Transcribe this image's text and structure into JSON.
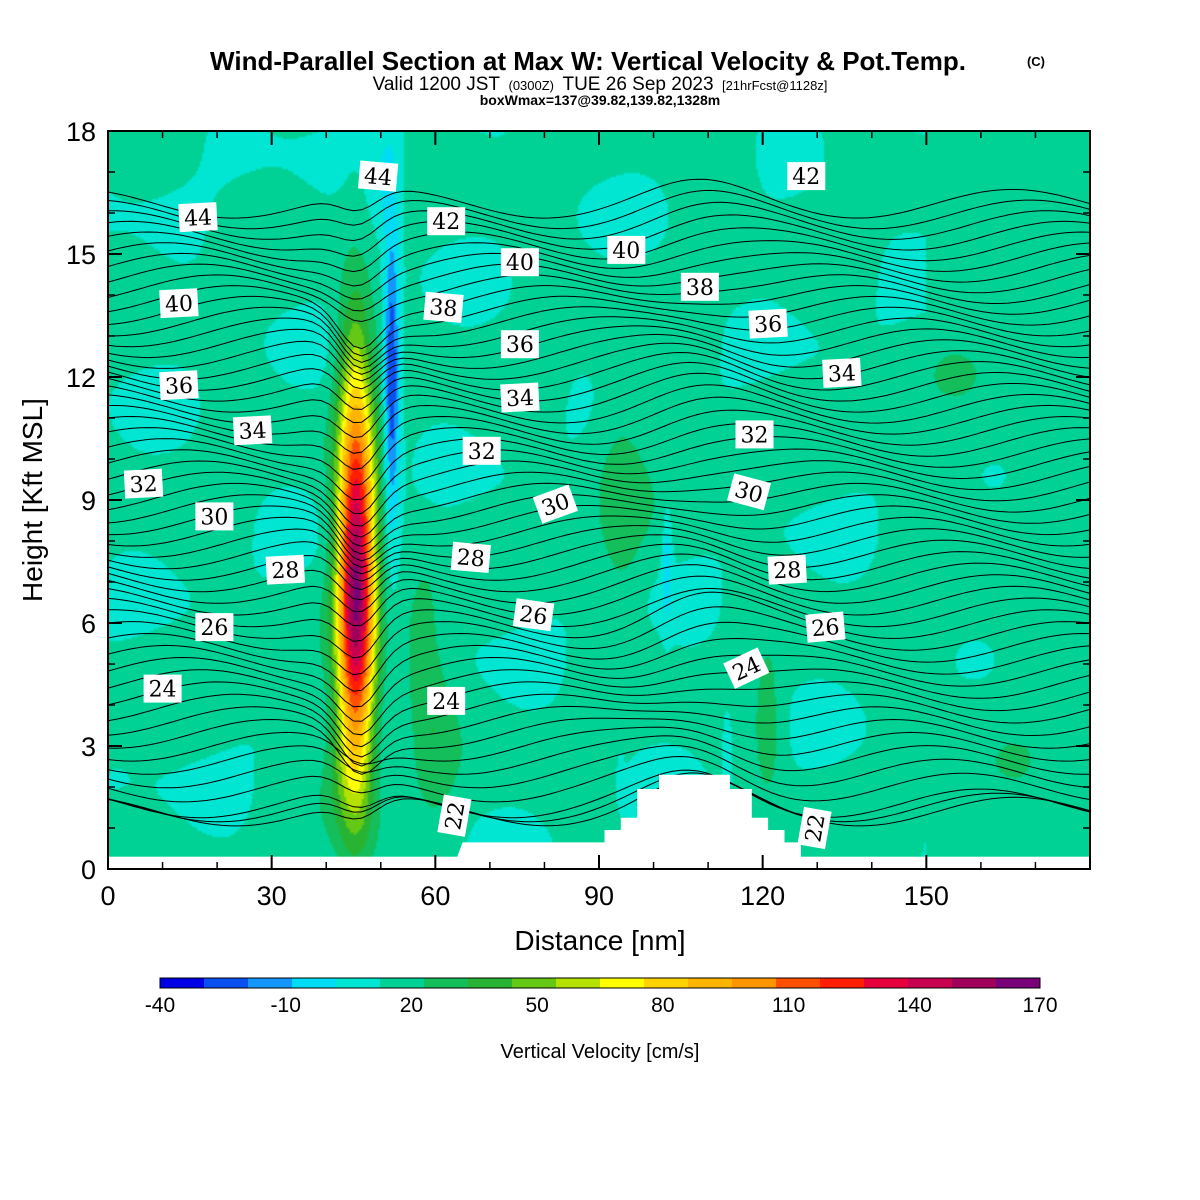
{
  "title": {
    "main": "Wind-Parallel Section at Max W: Vertical Velocity & Pot.Temp.",
    "copyright": "(C)",
    "valid_prefix": "Valid 1200 JST",
    "valid_utc": "(0300Z)",
    "valid_date": "TUE 26 Sep 2023",
    "forecast": "[21hrFcst@1128z]",
    "boxwmax": "boxWmax=137@39.82,139.82,1328m"
  },
  "colorbar": {
    "label": "Vertical Velocity [cm/s]",
    "tick_labels": [
      "-40",
      "-10",
      "20",
      "50",
      "80",
      "110",
      "140",
      "170"
    ],
    "colors": [
      "#0000e6",
      "#0a50f0",
      "#1496fa",
      "#00dcf5",
      "#00e6d2",
      "#00d296",
      "#14be5a",
      "#28b432",
      "#64c814",
      "#b4e100",
      "#ffff00",
      "#ffd200",
      "#ffb400",
      "#ff9600",
      "#ff5000",
      "#ff1e00",
      "#e6003c",
      "#c80050",
      "#a0005a",
      "#780078"
    ]
  },
  "chart_data": {
    "type": "heatmap",
    "xlabel": "Distance [nm]",
    "ylabel": "Height [Kft MSL]",
    "xlim": [
      0,
      180
    ],
    "ylim": [
      0,
      18
    ],
    "x_ticks": [
      0,
      30,
      60,
      90,
      120,
      150
    ],
    "y_ticks": [
      0,
      3,
      6,
      9,
      12,
      15,
      18
    ],
    "colorscale_range": [
      -40,
      170
    ],
    "colorscale_step": 10,
    "terrain_profile": [
      [
        64,
        0.3
      ],
      [
        65,
        0.65
      ],
      [
        91,
        0.65
      ],
      [
        91,
        0.95
      ],
      [
        94,
        0.95
      ],
      [
        94,
        1.25
      ],
      [
        97,
        1.25
      ],
      [
        97,
        1.95
      ],
      [
        101,
        1.95
      ],
      [
        101,
        2.3
      ],
      [
        114,
        2.3
      ],
      [
        114,
        1.95
      ],
      [
        118,
        1.95
      ],
      [
        118,
        1.25
      ],
      [
        121,
        1.25
      ],
      [
        121,
        0.95
      ],
      [
        124,
        0.95
      ],
      [
        124,
        0.65
      ],
      [
        127,
        0.65
      ],
      [
        127,
        0.3
      ]
    ],
    "vertical_velocity_features": [
      {
        "x": 45.5,
        "y": 7.0,
        "sx": 2.4,
        "sy": 3.2,
        "w": 152
      },
      {
        "x": 45.0,
        "y": 12.3,
        "sx": 2.0,
        "sy": 1.5,
        "w": 25
      },
      {
        "x": 43.5,
        "y": 2.6,
        "sx": 3.0,
        "sy": 1.2,
        "w": 25
      },
      {
        "x": 52.0,
        "y": 12.0,
        "sx": 1.0,
        "sy": 2.5,
        "w": -55
      },
      {
        "x": 51.0,
        "y": 16.8,
        "sx": 2.2,
        "sy": 1.0,
        "w": -26
      },
      {
        "x": 57.5,
        "y": 5.5,
        "sx": 2.5,
        "sy": 1.6,
        "w": 25
      },
      {
        "x": 60.0,
        "y": 3.2,
        "sx": 3.0,
        "sy": 1.3,
        "w": 25
      },
      {
        "x": 94.0,
        "y": 10.0,
        "sx": 3.5,
        "sy": 2.0,
        "w": 22
      },
      {
        "x": 94.0,
        "y": 7.7,
        "sx": 2.8,
        "sy": 1.2,
        "w": 17
      },
      {
        "x": 102.5,
        "y": 7.5,
        "sx": 0.6,
        "sy": 1.0,
        "w": -30
      },
      {
        "x": 113.5,
        "y": 3.0,
        "sx": 0.6,
        "sy": 0.7,
        "w": -22
      },
      {
        "x": 121.0,
        "y": 3.4,
        "sx": 2.0,
        "sy": 1.3,
        "w": 25
      },
      {
        "x": 116.5,
        "y": 17.0,
        "sx": 2.0,
        "sy": 1.5,
        "w": 17
      },
      {
        "x": 94.0,
        "y": 2.2,
        "sx": 0.4,
        "sy": 0.4,
        "w": -18
      }
    ],
    "potential_temperature_labels": [
      {
        "value": "44",
        "x": 49.5,
        "y": 16.9,
        "angle": 5
      },
      {
        "value": "44",
        "x": 16.5,
        "y": 15.9,
        "angle": -3
      },
      {
        "value": "42",
        "x": 62.0,
        "y": 15.8,
        "angle": 0
      },
      {
        "value": "42",
        "x": 128.0,
        "y": 16.9,
        "angle": 0
      },
      {
        "value": "40",
        "x": 13.0,
        "y": 13.8,
        "angle": -3
      },
      {
        "value": "40",
        "x": 75.5,
        "y": 14.8,
        "angle": 0
      },
      {
        "value": "40",
        "x": 95.0,
        "y": 15.1,
        "angle": 0
      },
      {
        "value": "38",
        "x": 61.5,
        "y": 13.7,
        "angle": 5
      },
      {
        "value": "38",
        "x": 108.5,
        "y": 14.2,
        "angle": 0
      },
      {
        "value": "36",
        "x": 13.0,
        "y": 11.8,
        "angle": -3
      },
      {
        "value": "36",
        "x": 75.5,
        "y": 12.8,
        "angle": 0
      },
      {
        "value": "36",
        "x": 121.0,
        "y": 13.3,
        "angle": -3
      },
      {
        "value": "34",
        "x": 26.5,
        "y": 10.7,
        "angle": -3
      },
      {
        "value": "34",
        "x": 75.5,
        "y": 11.5,
        "angle": -3
      },
      {
        "value": "34",
        "x": 134.5,
        "y": 12.1,
        "angle": -3
      },
      {
        "value": "32",
        "x": 6.5,
        "y": 9.4,
        "angle": -3
      },
      {
        "value": "32",
        "x": 68.5,
        "y": 10.2,
        "angle": 0
      },
      {
        "value": "32",
        "x": 118.5,
        "y": 10.6,
        "angle": 0
      },
      {
        "value": "30",
        "x": 19.5,
        "y": 8.6,
        "angle": 0
      },
      {
        "value": "30",
        "x": 82.0,
        "y": 8.9,
        "angle": -20
      },
      {
        "value": "30",
        "x": 117.5,
        "y": 9.2,
        "angle": 15
      },
      {
        "value": "28",
        "x": 32.5,
        "y": 7.3,
        "angle": -3
      },
      {
        "value": "28",
        "x": 66.5,
        "y": 7.6,
        "angle": 5
      },
      {
        "value": "28",
        "x": 124.5,
        "y": 7.3,
        "angle": -3
      },
      {
        "value": "26",
        "x": 19.5,
        "y": 5.9,
        "angle": 0
      },
      {
        "value": "26",
        "x": 78.0,
        "y": 6.2,
        "angle": 8
      },
      {
        "value": "26",
        "x": 131.5,
        "y": 5.9,
        "angle": -5
      },
      {
        "value": "24",
        "x": 10.0,
        "y": 4.4,
        "angle": 0
      },
      {
        "value": "24",
        "x": 62.0,
        "y": 4.1,
        "angle": 0
      },
      {
        "value": "24",
        "x": 117.0,
        "y": 4.9,
        "angle": -25
      },
      {
        "value": "22",
        "x": 63.5,
        "y": 1.3,
        "angle": -80
      },
      {
        "value": "22",
        "x": 129.5,
        "y": 1.0,
        "angle": -80
      }
    ]
  }
}
